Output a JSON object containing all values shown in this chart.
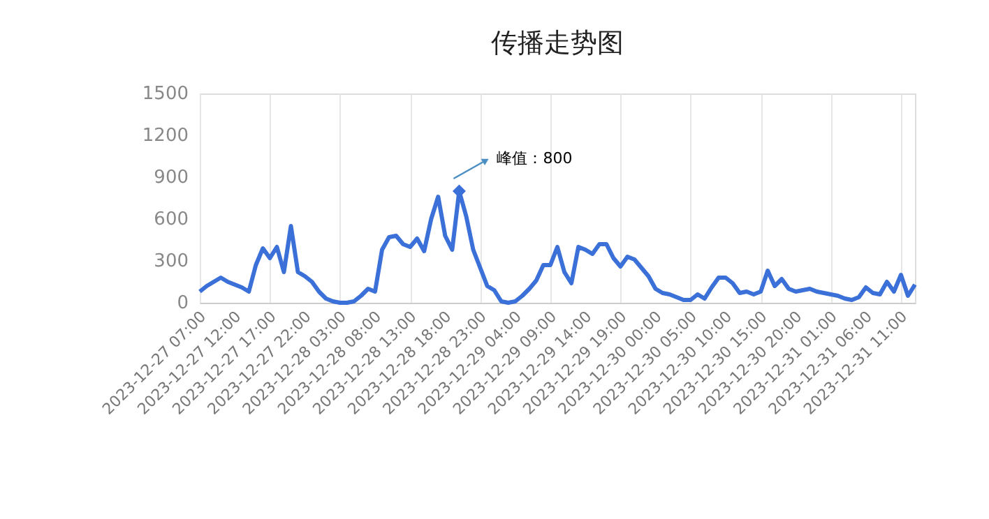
{
  "chart_data": {
    "type": "line",
    "title": "传播走势图",
    "x": [
      "2023-12-27T07:00",
      "2023-12-27T08:00",
      "2023-12-27T09:00",
      "2023-12-27T10:00",
      "2023-12-27T11:00",
      "2023-12-27T12:00",
      "2023-12-27T13:00",
      "2023-12-27T14:00",
      "2023-12-27T15:00",
      "2023-12-27T16:00",
      "2023-12-27T17:00",
      "2023-12-27T18:00",
      "2023-12-27T19:00",
      "2023-12-27T20:00",
      "2023-12-27T21:00",
      "2023-12-27T22:00",
      "2023-12-27T23:00",
      "2023-12-28T00:00",
      "2023-12-28T01:00",
      "2023-12-28T02:00",
      "2023-12-28T03:00",
      "2023-12-28T04:00",
      "2023-12-28T05:00",
      "2023-12-28T06:00",
      "2023-12-28T07:00",
      "2023-12-28T08:00",
      "2023-12-28T09:00",
      "2023-12-28T10:00",
      "2023-12-28T11:00",
      "2023-12-28T12:00",
      "2023-12-28T13:00",
      "2023-12-28T14:00",
      "2023-12-28T15:00",
      "2023-12-28T16:00",
      "2023-12-28T17:00",
      "2023-12-28T18:00",
      "2023-12-28T19:00",
      "2023-12-28T20:00",
      "2023-12-28T21:00",
      "2023-12-28T22:00",
      "2023-12-28T23:00",
      "2023-12-29T00:00",
      "2023-12-29T01:00",
      "2023-12-29T02:00",
      "2023-12-29T03:00",
      "2023-12-29T04:00",
      "2023-12-29T05:00",
      "2023-12-29T06:00",
      "2023-12-29T07:00",
      "2023-12-29T08:00",
      "2023-12-29T09:00",
      "2023-12-29T10:00",
      "2023-12-29T11:00",
      "2023-12-29T12:00",
      "2023-12-29T13:00",
      "2023-12-29T14:00",
      "2023-12-29T15:00",
      "2023-12-29T16:00",
      "2023-12-29T17:00",
      "2023-12-29T18:00",
      "2023-12-29T19:00",
      "2023-12-29T20:00",
      "2023-12-29T21:00",
      "2023-12-29T22:00",
      "2023-12-29T23:00",
      "2023-12-30T00:00",
      "2023-12-30T01:00",
      "2023-12-30T02:00",
      "2023-12-30T03:00",
      "2023-12-30T04:00",
      "2023-12-30T05:00",
      "2023-12-30T06:00",
      "2023-12-30T07:00",
      "2023-12-30T08:00",
      "2023-12-30T09:00",
      "2023-12-30T10:00",
      "2023-12-30T11:00",
      "2023-12-30T12:00",
      "2023-12-30T13:00",
      "2023-12-30T14:00",
      "2023-12-30T15:00",
      "2023-12-30T16:00",
      "2023-12-30T17:00",
      "2023-12-30T18:00",
      "2023-12-30T19:00",
      "2023-12-30T20:00",
      "2023-12-30T21:00",
      "2023-12-30T22:00",
      "2023-12-30T23:00",
      "2023-12-31T00:00",
      "2023-12-31T01:00",
      "2023-12-31T02:00",
      "2023-12-31T03:00",
      "2023-12-31T04:00",
      "2023-12-31T05:00",
      "2023-12-31T06:00",
      "2023-12-31T07:00",
      "2023-12-31T08:00",
      "2023-12-31T09:00",
      "2023-12-31T10:00",
      "2023-12-31T11:00",
      "2023-12-31T12:00",
      "2023-12-31T13:00"
    ],
    "series": [
      {
        "color": "#3b70d9",
        "values": [
          80,
          120,
          150,
          180,
          150,
          130,
          110,
          80,
          270,
          390,
          320,
          400,
          220,
          550,
          220,
          190,
          150,
          80,
          30,
          10,
          0,
          0,
          10,
          50,
          100,
          80,
          380,
          470,
          480,
          420,
          400,
          460,
          370,
          600,
          760,
          480,
          380,
          800,
          620,
          380,
          250,
          120,
          90,
          10,
          0,
          10,
          50,
          100,
          160,
          270,
          270,
          400,
          220,
          140,
          400,
          380,
          350,
          420,
          420,
          320,
          260,
          330,
          310,
          250,
          190,
          100,
          70,
          60,
          40,
          20,
          20,
          60,
          30,
          110,
          180,
          180,
          140,
          70,
          80,
          60,
          80,
          230,
          120,
          170,
          100,
          80,
          90,
          100,
          80,
          70,
          60,
          50,
          30,
          20,
          40,
          110,
          70,
          60,
          150,
          80,
          200,
          50,
          130
        ]
      }
    ],
    "xlim": [
      "2023-12-27T07:00",
      "2023-12-31T13:00"
    ],
    "xticks": [
      {
        "value": "2023-12-27T07:00",
        "label": "2023-12-27 07:00"
      },
      {
        "value": "2023-12-27T12:00",
        "label": "2023-12-27 12:00"
      },
      {
        "value": "2023-12-27T17:00",
        "label": "2023-12-27 17:00"
      },
      {
        "value": "2023-12-27T22:00",
        "label": "2023-12-27 22:00"
      },
      {
        "value": "2023-12-28T03:00",
        "label": "2023-12-28 03:00"
      },
      {
        "value": "2023-12-28T08:00",
        "label": "2023-12-28 08:00"
      },
      {
        "value": "2023-12-28T13:00",
        "label": "2023-12-28 13:00"
      },
      {
        "value": "2023-12-28T18:00",
        "label": "2023-12-28 18:00"
      },
      {
        "value": "2023-12-28T23:00",
        "label": "2023-12-28 23:00"
      },
      {
        "value": "2023-12-29T04:00",
        "label": "2023-12-29 04:00"
      },
      {
        "value": "2023-12-29T09:00",
        "label": "2023-12-29 09:00"
      },
      {
        "value": "2023-12-29T14:00",
        "label": "2023-12-29 14:00"
      },
      {
        "value": "2023-12-29T19:00",
        "label": "2023-12-29 19:00"
      },
      {
        "value": "2023-12-30T00:00",
        "label": "2023-12-30 00:00"
      },
      {
        "value": "2023-12-30T05:00",
        "label": "2023-12-30 05:00"
      },
      {
        "value": "2023-12-30T10:00",
        "label": "2023-12-30 10:00"
      },
      {
        "value": "2023-12-30T15:00",
        "label": "2023-12-30 15:00"
      },
      {
        "value": "2023-12-30T20:00",
        "label": "2023-12-30 20:00"
      },
      {
        "value": "2023-12-31T01:00",
        "label": "2023-12-31 01:00"
      },
      {
        "value": "2023-12-31T06:00",
        "label": "2023-12-31 06:00"
      },
      {
        "value": "2023-12-31T11:00",
        "label": "2023-12-31 11:00"
      }
    ],
    "ylim": [
      0,
      1500
    ],
    "yticks": [
      0,
      300,
      600,
      900,
      1200,
      1500
    ],
    "grid": "x",
    "marker": "none",
    "line_style": "solid",
    "annotations": [
      {
        "text": "峰值：800",
        "x": "2023-12-28T20:00",
        "y": 800
      }
    ]
  }
}
